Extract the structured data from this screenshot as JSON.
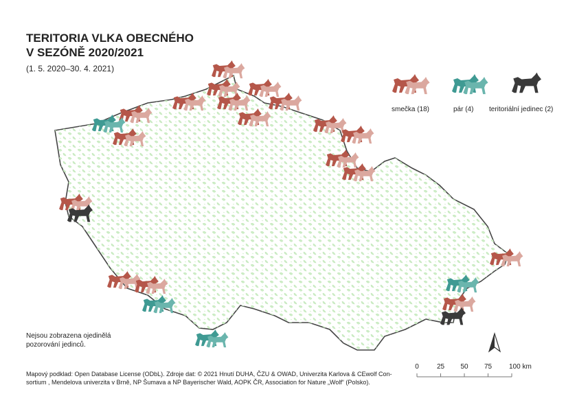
{
  "header": {
    "title_lines": [
      "TERITORIA VLKA OBECNÉHO",
      "V SEZÓNĚ 2020/2021"
    ],
    "subtitle": "(1. 5. 2020–30. 4. 2021)"
  },
  "legend": [
    {
      "label": "smečka (18)"
    },
    {
      "label": "pár (4)"
    },
    {
      "label": "teritoriální jedinec (2)"
    }
  ],
  "note_lines": [
    "Nejsou zobrazena ojedinělá",
    "pozorování jedinců."
  ],
  "source_lines": [
    "Mapový podklad: Open Database License (ODbL). Zdroje dat: © 2021 Hnutí DUHA, ČZU & OWAD, Univerzita Karlova & CEwolf Con-",
    "sortium , Mendelova univerzita v Brně, NP Šumava a NP Bayerischer Wald, AOPK ČR, Association for Nature „Wolf“ (Polsko)."
  ],
  "scale_bar": {
    "ticks": [
      0,
      25,
      50,
      75,
      {
        "value": 100,
        "label": "100 km"
      }
    ]
  }
}
